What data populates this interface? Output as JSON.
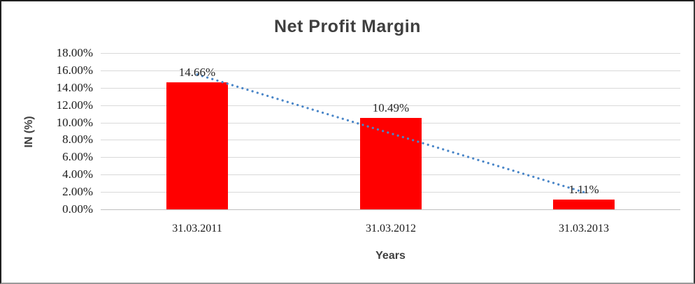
{
  "chart_data": {
    "type": "bar",
    "title": "Net Profit Margin",
    "xlabel": "Years",
    "ylabel": "IN (%)",
    "categories": [
      "31.03.2011",
      "31.03.2012",
      "31.03.2013"
    ],
    "values": [
      14.66,
      10.49,
      1.11
    ],
    "data_labels": [
      "14.66%",
      "10.49%",
      "1.11%"
    ],
    "ylim": [
      0,
      18
    ],
    "ytick_step": 2,
    "ytick_labels": [
      "0.00%",
      "2.00%",
      "4.00%",
      "6.00%",
      "8.00%",
      "10.00%",
      "12.00%",
      "14.00%",
      "16.00%",
      "18.00%"
    ],
    "grid": true,
    "legend": "none",
    "bar_color": "#ff0000",
    "trendline": {
      "type": "linear",
      "style": "dotted",
      "color": "#4a86c8",
      "start_value_pct": 15.53,
      "end_value_pct": 1.98
    },
    "colors": {
      "gridline": "#d9d9d9",
      "axis_line": "#bfbfbf",
      "title_text": "#3f3f3f",
      "tick_text": "#1a1a1a"
    }
  }
}
